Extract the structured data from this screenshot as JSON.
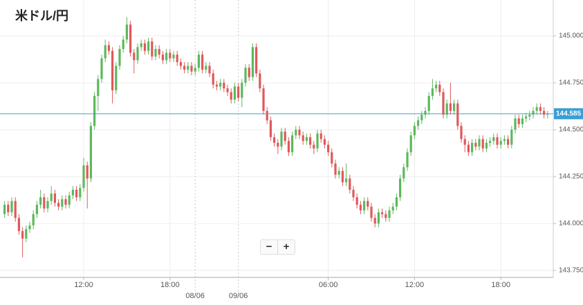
{
  "chart_data": {
    "type": "candlestick",
    "title": "米ドル/円",
    "categories": [
      null,
      null,
      null,
      null,
      null,
      null,
      null,
      null,
      null,
      null,
      null,
      null,
      null,
      null,
      null,
      null,
      null,
      null,
      null,
      null,
      null,
      null,
      "12:00",
      null,
      null,
      null,
      null,
      null,
      null,
      null,
      null,
      null,
      null,
      null,
      null,
      null,
      null,
      null,
      null,
      null,
      null,
      null,
      null,
      null,
      null,
      null,
      "18:00",
      null,
      null,
      null,
      null,
      null,
      null,
      "08/06",
      null,
      null,
      null,
      null,
      null,
      null,
      null,
      null,
      null,
      null,
      null,
      "09/06",
      null,
      null,
      null,
      null,
      null,
      null,
      null,
      null,
      null,
      null,
      null,
      null,
      null,
      null,
      null,
      null,
      null,
      null,
      null,
      null,
      null,
      null,
      null,
      null,
      "06:00",
      null,
      null,
      null,
      null,
      null,
      null,
      null,
      null,
      null,
      null,
      null,
      null,
      null,
      null,
      null,
      null,
      null,
      null,
      null,
      null,
      null,
      null,
      null,
      "12:00",
      null,
      null,
      null,
      null,
      null,
      null,
      null,
      null,
      null,
      null,
      null,
      null,
      null,
      null,
      null,
      null,
      null,
      null,
      null,
      null,
      null,
      null,
      null,
      "18:00",
      null,
      null,
      null,
      null,
      null,
      null,
      null,
      null,
      null,
      null,
      null,
      null,
      null
    ],
    "open": [
      144.05,
      144.1,
      144.06,
      144.12,
      144.03,
      143.96,
      143.92,
      143.97,
      143.99,
      144.05,
      144.1,
      144.14,
      144.08,
      144.12,
      144.16,
      144.11,
      144.09,
      144.13,
      144.1,
      144.15,
      144.18,
      144.14,
      144.19,
      144.31,
      144.24,
      144.52,
      144.68,
      144.77,
      144.88,
      144.95,
      144.92,
      144.71,
      144.84,
      144.93,
      144.98,
      145.06,
      144.91,
      144.87,
      144.94,
      144.96,
      144.92,
      144.97,
      144.89,
      144.93,
      144.9,
      144.87,
      144.91,
      144.88,
      144.9,
      144.86,
      144.84,
      144.82,
      144.84,
      144.81,
      144.83,
      144.9,
      144.82,
      144.84,
      144.8,
      144.74,
      144.73,
      144.75,
      144.72,
      144.7,
      144.66,
      144.73,
      144.67,
      144.75,
      144.83,
      144.78,
      144.94,
      144.8,
      144.72,
      144.6,
      144.55,
      144.46,
      144.43,
      144.41,
      144.49,
      144.44,
      144.38,
      144.47,
      144.5,
      144.47,
      144.44,
      144.46,
      144.42,
      144.4,
      144.48,
      144.45,
      144.42,
      144.38,
      144.32,
      144.26,
      144.28,
      144.22,
      144.24,
      144.18,
      144.14,
      144.1,
      144.07,
      144.12,
      144.09,
      144.03,
      144.0,
      144.06,
      144.05,
      144.03,
      144.07,
      144.09,
      144.14,
      144.24,
      144.3,
      144.38,
      144.47,
      144.52,
      144.55,
      144.58,
      144.6,
      144.68,
      144.72,
      144.74,
      144.7,
      144.58,
      144.64,
      144.6,
      144.64,
      144.52,
      144.45,
      144.42,
      144.38,
      144.43,
      144.41,
      144.45,
      144.4,
      144.43,
      144.44,
      144.46,
      144.42,
      144.44,
      144.45,
      144.42,
      144.5,
      144.56,
      144.53,
      144.56,
      144.57,
      144.58,
      144.6,
      144.62,
      144.6,
      144.58
    ],
    "high": [
      144.12,
      144.12,
      144.14,
      144.14,
      144.05,
      143.98,
      143.99,
      144.01,
      144.07,
      144.12,
      144.18,
      144.16,
      144.14,
      144.2,
      144.18,
      144.13,
      144.15,
      144.15,
      144.17,
      144.2,
      144.2,
      144.21,
      144.35,
      144.33,
      144.54,
      144.7,
      144.79,
      144.9,
      144.98,
      144.97,
      144.94,
      144.86,
      144.95,
      145.0,
      145.1,
      145.08,
      144.93,
      144.96,
      144.98,
      144.98,
      144.99,
      144.99,
      144.95,
      144.95,
      144.92,
      144.93,
      144.93,
      144.92,
      144.92,
      144.88,
      144.86,
      144.86,
      144.86,
      144.85,
      144.92,
      144.92,
      144.86,
      144.86,
      144.82,
      144.76,
      144.77,
      144.77,
      144.74,
      144.72,
      144.75,
      144.75,
      144.77,
      144.85,
      144.85,
      144.96,
      144.96,
      144.82,
      144.74,
      144.62,
      144.57,
      144.48,
      144.45,
      144.51,
      144.51,
      144.46,
      144.49,
      144.52,
      144.52,
      144.49,
      144.48,
      144.48,
      144.44,
      144.5,
      144.5,
      144.47,
      144.44,
      144.4,
      144.34,
      144.3,
      144.3,
      144.32,
      144.26,
      144.2,
      144.16,
      144.12,
      144.14,
      144.14,
      144.11,
      144.05,
      144.08,
      144.08,
      144.07,
      144.09,
      144.11,
      144.16,
      144.26,
      144.32,
      144.4,
      144.49,
      144.54,
      144.57,
      144.6,
      144.62,
      144.7,
      144.77,
      144.76,
      144.76,
      144.72,
      144.66,
      144.75,
      144.66,
      144.66,
      144.54,
      144.47,
      144.44,
      144.45,
      144.45,
      144.47,
      144.47,
      144.45,
      144.46,
      144.48,
      144.48,
      144.46,
      144.47,
      144.47,
      144.52,
      144.58,
      144.58,
      144.58,
      144.59,
      144.6,
      144.62,
      144.64,
      144.64,
      144.62,
      144.6
    ],
    "low": [
      144.03,
      144.04,
      144.04,
      144.01,
      143.94,
      143.82,
      143.9,
      143.95,
      143.97,
      144.03,
      144.08,
      144.06,
      144.06,
      144.1,
      144.09,
      144.07,
      144.07,
      144.08,
      144.08,
      144.13,
      144.12,
      144.12,
      144.17,
      144.08,
      144.22,
      144.5,
      144.6,
      144.75,
      144.86,
      144.9,
      144.64,
      144.69,
      144.82,
      144.91,
      144.96,
      144.89,
      144.8,
      144.85,
      144.92,
      144.9,
      144.9,
      144.87,
      144.87,
      144.88,
      144.85,
      144.85,
      144.86,
      144.86,
      144.84,
      144.82,
      144.8,
      144.8,
      144.79,
      144.79,
      144.81,
      144.8,
      144.8,
      144.78,
      144.72,
      144.71,
      144.71,
      144.7,
      144.68,
      144.64,
      144.64,
      144.65,
      144.62,
      144.73,
      144.76,
      144.76,
      144.78,
      144.7,
      144.58,
      144.53,
      144.44,
      144.41,
      144.37,
      144.39,
      144.42,
      144.36,
      144.36,
      144.45,
      144.45,
      144.42,
      144.42,
      144.4,
      144.37,
      144.38,
      144.43,
      144.4,
      144.36,
      144.3,
      144.24,
      144.24,
      144.2,
      144.2,
      144.16,
      144.12,
      144.08,
      144.05,
      144.05,
      144.07,
      144.01,
      143.98,
      143.98,
      144.03,
      144.01,
      144.01,
      144.05,
      144.07,
      144.12,
      144.22,
      144.28,
      144.36,
      144.45,
      144.5,
      144.53,
      144.56,
      144.58,
      144.66,
      144.7,
      144.68,
      144.56,
      144.56,
      144.58,
      144.58,
      144.5,
      144.43,
      144.38,
      144.36,
      144.36,
      144.39,
      144.39,
      144.38,
      144.38,
      144.41,
      144.42,
      144.4,
      144.4,
      144.42,
      144.4,
      144.4,
      144.48,
      144.51,
      144.51,
      144.54,
      144.55,
      144.56,
      144.58,
      144.58,
      144.56,
      144.56
    ],
    "close": [
      144.1,
      144.06,
      144.12,
      144.03,
      143.96,
      143.92,
      143.97,
      143.99,
      144.05,
      144.1,
      144.14,
      144.08,
      144.12,
      144.16,
      144.11,
      144.09,
      144.13,
      144.1,
      144.15,
      144.18,
      144.14,
      144.19,
      144.31,
      144.24,
      144.52,
      144.68,
      144.77,
      144.88,
      144.95,
      144.92,
      144.71,
      144.84,
      144.93,
      144.98,
      145.06,
      144.91,
      144.87,
      144.94,
      144.96,
      144.92,
      144.97,
      144.89,
      144.93,
      144.9,
      144.87,
      144.91,
      144.88,
      144.9,
      144.86,
      144.84,
      144.82,
      144.84,
      144.81,
      144.83,
      144.9,
      144.82,
      144.84,
      144.8,
      144.74,
      144.73,
      144.75,
      144.72,
      144.7,
      144.66,
      144.73,
      144.67,
      144.75,
      144.83,
      144.78,
      144.94,
      144.8,
      144.72,
      144.6,
      144.55,
      144.46,
      144.43,
      144.41,
      144.49,
      144.44,
      144.38,
      144.47,
      144.5,
      144.47,
      144.44,
      144.46,
      144.42,
      144.4,
      144.48,
      144.45,
      144.42,
      144.38,
      144.32,
      144.26,
      144.28,
      144.22,
      144.24,
      144.18,
      144.14,
      144.1,
      144.07,
      144.12,
      144.09,
      144.03,
      144.0,
      144.06,
      144.05,
      144.03,
      144.07,
      144.09,
      144.14,
      144.24,
      144.3,
      144.38,
      144.47,
      144.52,
      144.55,
      144.58,
      144.6,
      144.68,
      144.72,
      144.74,
      144.7,
      144.58,
      144.64,
      144.6,
      144.64,
      144.52,
      144.45,
      144.42,
      144.38,
      144.43,
      144.41,
      144.45,
      144.4,
      144.43,
      144.44,
      144.46,
      144.42,
      144.44,
      144.45,
      144.42,
      144.5,
      144.56,
      144.53,
      144.56,
      144.57,
      144.58,
      144.6,
      144.62,
      144.6,
      144.58,
      144.585
    ],
    "up_color": "#5cb85c",
    "down_color": "#e0585a",
    "ylim": [
      143.713,
      145.191
    ],
    "yticks": [
      {
        "value": 143.75,
        "label": "143.750"
      },
      {
        "value": 144,
        "label": "144.000"
      },
      {
        "value": 144.25,
        "label": "144.250"
      },
      {
        "value": 144.5,
        "label": "144.500"
      },
      {
        "value": 144.75,
        "label": "144.750"
      },
      {
        "value": 145,
        "label": "145.000"
      }
    ],
    "grid": true,
    "current_price": {
      "value": 144.585,
      "label": "144.585"
    },
    "current_price_color": "#3a9fd5"
  },
  "controls": [
    "−",
    "+"
  ]
}
